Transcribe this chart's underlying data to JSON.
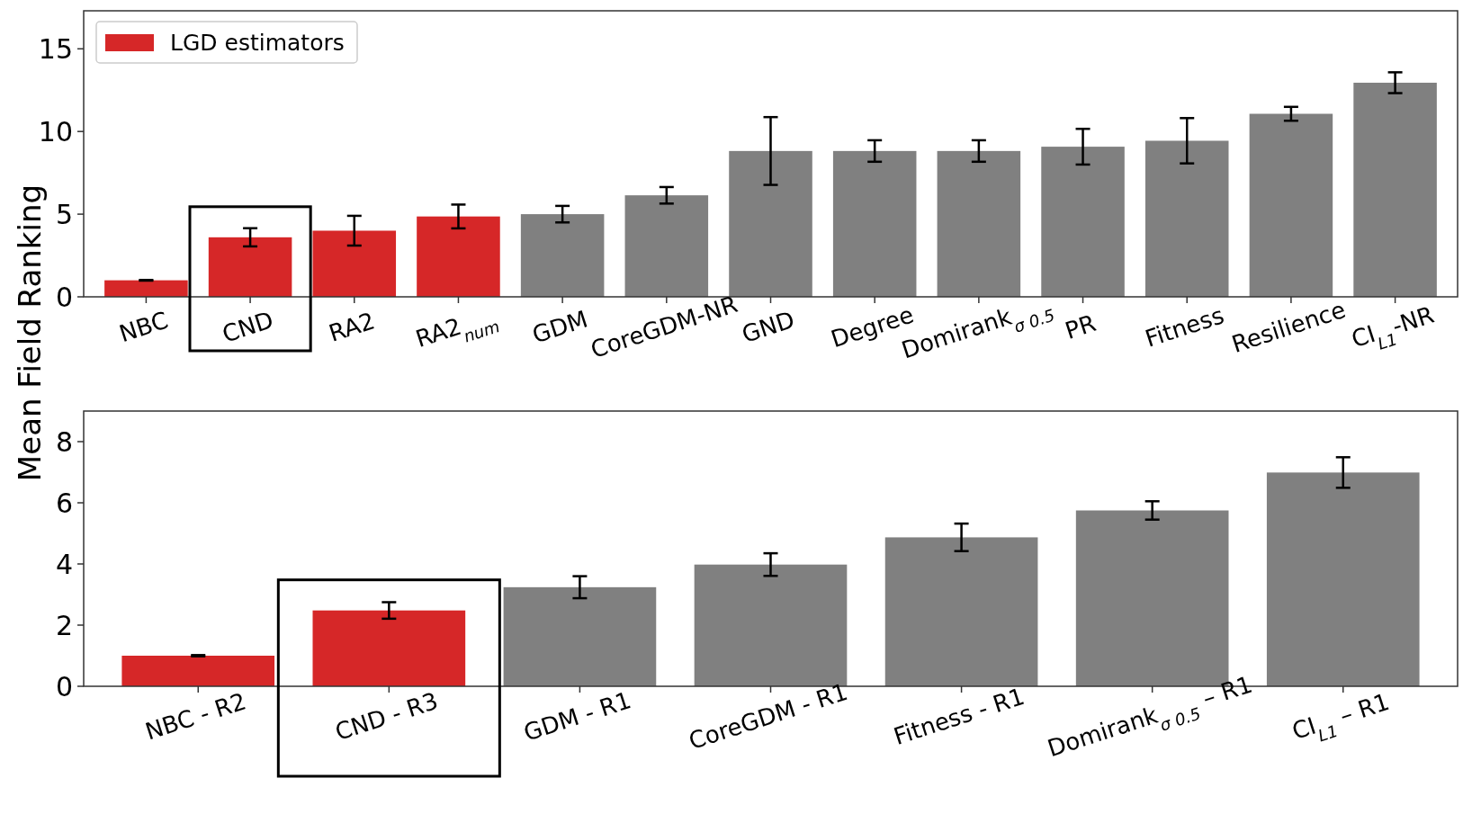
{
  "chart_data": [
    {
      "type": "bar",
      "ylabel": "Mean Field Ranking",
      "categories": [
        "NBC",
        "CND",
        "RA2",
        "RA2$_{num}$",
        "GDM",
        "CoreGDM-NR",
        "GND",
        "Degree",
        "Domirank$_{σ 0.5}$",
        "PR",
        "Fitness",
        "Resilience",
        "CI$_{L1}$-NR"
      ],
      "series": [
        {
          "name": "LGD estimators",
          "color": "#d62728",
          "values": [
            1.0,
            3.6,
            4.0,
            4.86,
            null,
            null,
            null,
            null,
            null,
            null,
            null,
            null,
            null
          ],
          "errors": [
            0.02,
            0.55,
            0.9,
            0.72,
            null,
            null,
            null,
            null,
            null,
            null,
            null,
            null,
            null
          ]
        },
        {
          "color": "#808080",
          "values": [
            null,
            null,
            null,
            null,
            5.0,
            6.14,
            8.82,
            8.82,
            8.82,
            9.08,
            9.44,
            11.07,
            12.95
          ],
          "errors": [
            null,
            null,
            null,
            null,
            0.5,
            0.5,
            2.05,
            0.65,
            0.65,
            1.08,
            1.37,
            0.42,
            0.63
          ]
        }
      ],
      "ylim": [
        0,
        17.3
      ],
      "yticks": [
        0,
        5,
        10,
        15
      ],
      "legend": "top left",
      "grid": false
    },
    {
      "type": "bar",
      "categories": [
        "NBC - R2",
        "CND - R3",
        "GDM - R1",
        "CoreGDM - R1",
        "Fitness - R1",
        "Domirank$_{σ 0.5}$ – R1",
        "CI$_{L1}$ – R1"
      ],
      "series": [
        {
          "color": "#d62728",
          "values": [
            1.0,
            2.48,
            null,
            null,
            null,
            null,
            null
          ],
          "errors": [
            0.02,
            0.27,
            null,
            null,
            null,
            null,
            null
          ]
        },
        {
          "color": "#808080",
          "values": [
            null,
            null,
            3.24,
            3.98,
            4.87,
            5.75,
            6.99
          ],
          "errors": [
            null,
            null,
            0.36,
            0.37,
            0.45,
            0.3,
            0.5
          ]
        }
      ],
      "ylim": [
        0,
        9
      ],
      "yticks": [
        0,
        2,
        4,
        6,
        8
      ],
      "legend": false,
      "grid": false
    }
  ]
}
